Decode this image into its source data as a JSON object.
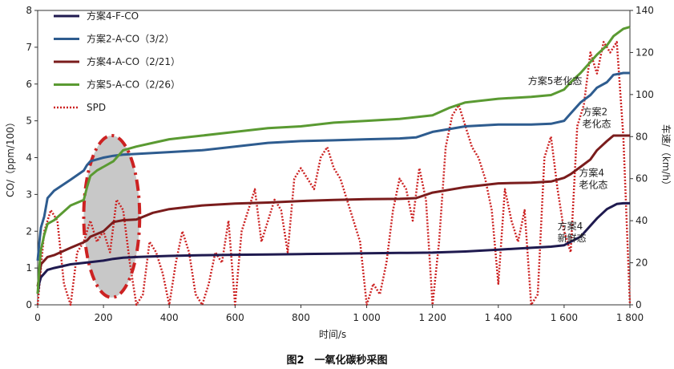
{
  "caption": "图2　一氧化碳秒采图",
  "chart_data": {
    "type": "line",
    "xlabel": "时间/s",
    "ylabel_left": "CO/（ppm/100）",
    "ylabel_right": "车速/（km/h）",
    "xlim": [
      0,
      1800
    ],
    "ylim_left": [
      0,
      8
    ],
    "ylim_right": [
      0,
      140
    ],
    "x_ticks": [
      "0",
      "200",
      "400",
      "600",
      "800",
      "1 000",
      "1 200",
      "1 400",
      "1 600",
      "1 800"
    ],
    "y_left_ticks": [
      "0",
      "1",
      "2",
      "3",
      "4",
      "5",
      "6",
      "7",
      "8"
    ],
    "y_right_ticks": [
      "0",
      "20",
      "40",
      "60",
      "80",
      "100",
      "120",
      "140"
    ],
    "legend": {
      "placement": "top-left",
      "entries": [
        "方案4-F-CO",
        "方案2-A-CO（3/2）",
        "方案4-A-CO（2/21）",
        "方案5-A-CO（2/26）",
        "SPD"
      ]
    },
    "colors": [
      "#1f1a4f",
      "#2e5c8f",
      "#7a1c1c",
      "#5a9a32",
      "#cc2222"
    ],
    "highlight": {
      "shape": "ellipse",
      "x_range": [
        140,
        310
      ],
      "y_range": [
        0.2,
        4.6
      ],
      "fill": "#c8c8c8",
      "stroke": "#cc2222"
    },
    "series": [
      {
        "name": "方案4-F-CO",
        "axis": "left",
        "x": [
          0,
          5,
          10,
          20,
          30,
          50,
          100,
          150,
          200,
          230,
          260,
          300,
          400,
          500,
          600,
          700,
          800,
          900,
          1000,
          1100,
          1200,
          1300,
          1400,
          1500,
          1560,
          1600,
          1650,
          1680,
          1700,
          1730,
          1760,
          1780,
          1800
        ],
        "y": [
          0.3,
          0.6,
          0.75,
          0.85,
          0.95,
          1.0,
          1.1,
          1.15,
          1.2,
          1.25,
          1.28,
          1.3,
          1.33,
          1.35,
          1.36,
          1.37,
          1.38,
          1.39,
          1.4,
          1.41,
          1.42,
          1.45,
          1.5,
          1.55,
          1.58,
          1.62,
          1.85,
          2.15,
          2.35,
          2.6,
          2.74,
          2.76,
          2.76
        ]
      },
      {
        "name": "方案2-A-CO（3/2）",
        "axis": "left",
        "x": [
          0,
          5,
          10,
          20,
          30,
          50,
          100,
          140,
          150,
          160,
          200,
          230,
          260,
          300,
          400,
          500,
          600,
          700,
          800,
          900,
          1000,
          1100,
          1150,
          1200,
          1300,
          1400,
          1500,
          1560,
          1600,
          1620,
          1650,
          1680,
          1700,
          1730,
          1750,
          1780,
          1800
        ],
        "y": [
          1.2,
          1.7,
          2.1,
          2.4,
          2.9,
          3.1,
          3.4,
          3.65,
          3.8,
          3.9,
          4.0,
          4.05,
          4.08,
          4.1,
          4.15,
          4.2,
          4.3,
          4.4,
          4.45,
          4.47,
          4.5,
          4.52,
          4.55,
          4.7,
          4.85,
          4.9,
          4.9,
          4.92,
          5.0,
          5.2,
          5.5,
          5.7,
          5.9,
          6.05,
          6.25,
          6.3,
          6.3
        ]
      },
      {
        "name": "方案4-A-CO（2/21）",
        "axis": "left",
        "x": [
          0,
          5,
          10,
          20,
          30,
          50,
          100,
          140,
          150,
          160,
          200,
          230,
          260,
          300,
          350,
          400,
          450,
          500,
          600,
          700,
          800,
          900,
          1000,
          1100,
          1150,
          1200,
          1300,
          1400,
          1500,
          1560,
          1600,
          1620,
          1650,
          1680,
          1700,
          1730,
          1750,
          1780,
          1800
        ],
        "y": [
          0.5,
          0.8,
          1.1,
          1.2,
          1.3,
          1.35,
          1.55,
          1.7,
          1.75,
          1.85,
          2.0,
          2.25,
          2.3,
          2.32,
          2.5,
          2.6,
          2.65,
          2.7,
          2.75,
          2.78,
          2.82,
          2.85,
          2.87,
          2.88,
          2.9,
          3.05,
          3.2,
          3.3,
          3.32,
          3.35,
          3.45,
          3.55,
          3.75,
          3.95,
          4.2,
          4.45,
          4.6,
          4.6,
          4.6
        ]
      },
      {
        "name": "方案5-A-CO（2/26）",
        "axis": "left",
        "x": [
          0,
          5,
          10,
          20,
          30,
          50,
          100,
          140,
          150,
          160,
          180,
          200,
          230,
          260,
          300,
          350,
          400,
          450,
          500,
          600,
          700,
          800,
          900,
          1000,
          1100,
          1200,
          1250,
          1300,
          1400,
          1500,
          1560,
          1600,
          1620,
          1650,
          1680,
          1700,
          1730,
          1750,
          1780,
          1800
        ],
        "y": [
          0.3,
          1.0,
          1.5,
          1.9,
          2.2,
          2.3,
          2.7,
          2.85,
          3.2,
          3.5,
          3.65,
          3.75,
          3.9,
          4.2,
          4.3,
          4.4,
          4.5,
          4.55,
          4.6,
          4.7,
          4.8,
          4.85,
          4.95,
          5.0,
          5.05,
          5.15,
          5.35,
          5.5,
          5.6,
          5.65,
          5.7,
          5.85,
          6.05,
          6.3,
          6.6,
          6.8,
          7.05,
          7.3,
          7.5,
          7.55
        ]
      },
      {
        "name": "SPD",
        "axis": "right",
        "x": [
          0,
          20,
          40,
          60,
          80,
          100,
          120,
          140,
          160,
          180,
          200,
          220,
          240,
          260,
          280,
          300,
          320,
          340,
          360,
          380,
          400,
          420,
          440,
          460,
          480,
          500,
          520,
          540,
          560,
          580,
          600,
          620,
          640,
          660,
          680,
          700,
          720,
          740,
          760,
          780,
          800,
          820,
          840,
          860,
          880,
          900,
          920,
          940,
          960,
          980,
          1000,
          1020,
          1040,
          1060,
          1080,
          1100,
          1120,
          1140,
          1160,
          1180,
          1200,
          1220,
          1240,
          1260,
          1280,
          1300,
          1320,
          1340,
          1360,
          1380,
          1400,
          1420,
          1440,
          1460,
          1480,
          1500,
          1520,
          1540,
          1560,
          1580,
          1600,
          1620,
          1640,
          1660,
          1680,
          1700,
          1720,
          1740,
          1760,
          1780,
          1800
        ],
        "y": [
          0,
          35,
          45,
          40,
          10,
          0,
          25,
          30,
          40,
          30,
          35,
          25,
          50,
          45,
          20,
          0,
          5,
          30,
          25,
          15,
          0,
          20,
          35,
          25,
          5,
          0,
          10,
          25,
          20,
          40,
          0,
          35,
          45,
          55,
          30,
          40,
          50,
          45,
          25,
          60,
          65,
          60,
          55,
          70,
          75,
          65,
          60,
          50,
          40,
          30,
          0,
          10,
          5,
          20,
          45,
          60,
          55,
          40,
          65,
          50,
          0,
          30,
          75,
          90,
          95,
          85,
          75,
          70,
          60,
          45,
          10,
          55,
          40,
          30,
          45,
          0,
          5,
          70,
          80,
          55,
          35,
          25,
          85,
          95,
          120,
          110,
          125,
          120,
          125,
          80,
          0
        ]
      }
    ]
  },
  "annotations": [
    {
      "lines": [
        "方案5老化态"
      ],
      "x": 1490,
      "y": 6.0
    },
    {
      "lines": [
        "方案2",
        "老化态"
      ],
      "x": 1655,
      "y": 5.15
    },
    {
      "lines": [
        "方案4",
        "老化态"
      ],
      "x": 1645,
      "y": 3.5
    },
    {
      "lines": [
        "方案4",
        "新鲜态"
      ],
      "x": 1580,
      "y": 2.05
    }
  ]
}
